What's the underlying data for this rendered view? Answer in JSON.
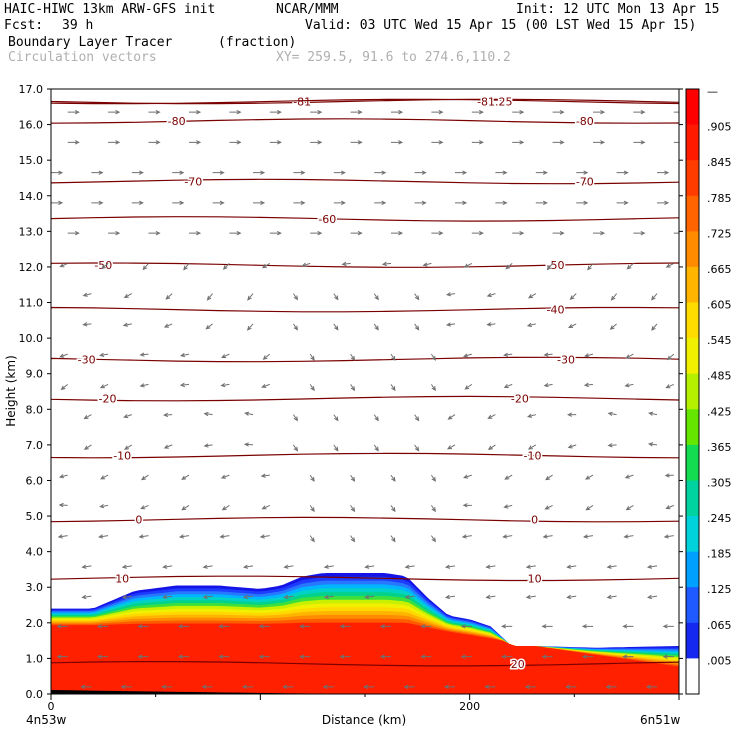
{
  "header": {
    "model": "HAIC-HIWC 13km ARW-GFS init",
    "org": "NCAR/MMM",
    "init": "Init: 12 UTC Mon 13 Apr 15",
    "fcst_label": "Fcst:",
    "fcst_value": "39 h",
    "valid": "Valid: 03 UTC Wed 15 Apr 15 (00 LST Wed 15 Apr 15)",
    "field1_name": "Boundary Layer Tracer",
    "field1_units": "(fraction)",
    "field2_name": "Circulation vectors",
    "xy_range": "XY= 259.5, 91.6 to 274.6,110.2"
  },
  "chart_data": {
    "type": "heatmap",
    "ylabel": "Height (km)",
    "xlabel": "Distance (km)",
    "ylim": [
      0,
      17
    ],
    "xlim": [
      0,
      300
    ],
    "yticks": [
      "0.0",
      "1.0",
      "2.0",
      "3.0",
      "4.0",
      "5.0",
      "6.0",
      "7.0",
      "8.0",
      "9.0",
      "10.0",
      "11.0",
      "12.0",
      "13.0",
      "14.0",
      "15.0",
      "16.0",
      "17.0"
    ],
    "xticks": [
      {
        "value": 0,
        "label": "0"
      },
      {
        "value": 200,
        "label": "200"
      }
    ],
    "x_left_label": "4n53w",
    "x_right_label": "6n51w",
    "tracer_top_km": {
      "x": [
        0,
        20,
        40,
        60,
        80,
        100,
        110,
        120,
        130,
        140,
        150,
        160,
        170,
        180,
        190,
        200,
        210,
        220,
        230,
        260,
        300
      ],
      "top": [
        2.4,
        2.4,
        2.9,
        3.05,
        3.05,
        2.95,
        3.05,
        3.3,
        3.4,
        3.4,
        3.4,
        3.4,
        3.3,
        2.7,
        2.2,
        2.1,
        1.9,
        1.35,
        1.35,
        1.3,
        1.35
      ]
    },
    "colorbar": {
      "labels": [
        "—",
        ".905",
        ".845",
        ".785",
        ".725",
        ".665",
        ".605",
        ".545",
        ".485",
        ".425",
        ".365",
        ".305",
        ".245",
        ".185",
        ".125",
        ".065",
        ".005"
      ]
    },
    "contours": [
      {
        "label": "-81",
        "height_km": 16.65,
        "label_x": [
          120
        ]
      },
      {
        "label": "-81.25",
        "height_km": 16.65,
        "label_x": [
          212
        ]
      },
      {
        "label": "-80",
        "height_km": 16.1,
        "label_x": [
          60,
          255
        ]
      },
      {
        "label": "-70",
        "height_km": 14.4,
        "label_x": [
          68,
          255
        ]
      },
      {
        "label": "-60",
        "height_km": 13.35,
        "label_x": [
          132
        ]
      },
      {
        "label": "-50",
        "height_km": 12.05,
        "label_x": [
          25,
          241
        ]
      },
      {
        "label": "-40",
        "height_km": 10.8,
        "label_x": [
          241
        ]
      },
      {
        "label": "-30",
        "height_km": 9.4,
        "label_x": [
          17,
          246
        ]
      },
      {
        "label": "-20",
        "height_km": 8.3,
        "label_x": [
          27,
          224
        ]
      },
      {
        "label": "-10",
        "height_km": 6.7,
        "label_x": [
          34,
          230
        ]
      },
      {
        "label": "0",
        "height_km": 4.9,
        "label_x": [
          42,
          231
        ]
      },
      {
        "label": "10",
        "height_km": 3.25,
        "label_x": [
          34,
          231
        ]
      },
      {
        "label": "20",
        "height_km": 0.85,
        "label_x": [
          223
        ]
      }
    ],
    "contour_color": "#7a0000",
    "vector_color": "#707070"
  }
}
